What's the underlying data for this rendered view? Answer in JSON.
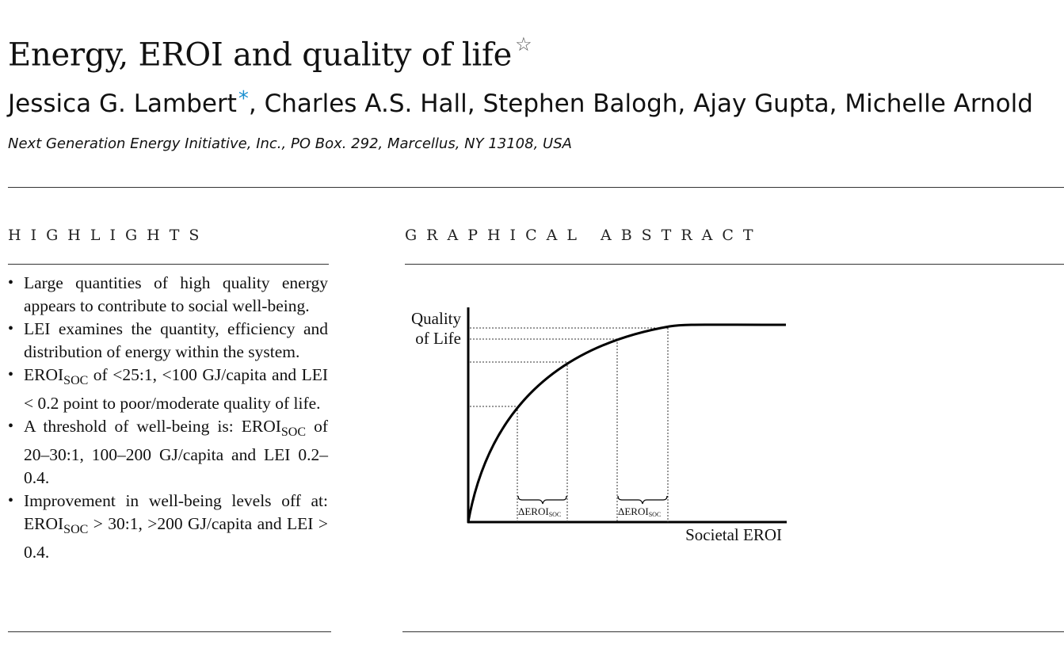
{
  "article": {
    "title": "Energy, EROI and quality of life",
    "title_star": "☆",
    "authors": "Jessica G. Lambert",
    "authors_rest": ", Charles A.S. Hall, Stephen Balogh, Ajay Gupta, Michelle Arnold",
    "corresponding_mark": "*",
    "affiliation": "Next Generation Energy Initiative, Inc., PO Box. 292, Marcellus, NY 13108, USA"
  },
  "highlights": {
    "heading": "HIGHLIGHTS",
    "items": [
      {
        "parts": [
          "Large quantities of high quality energy appears to contribute to social well-being."
        ]
      },
      {
        "parts": [
          "LEI examines the quantity, efficiency and distribution of energy within the system."
        ]
      },
      {
        "parts": [
          "EROI",
          "SOC",
          " of  <25:1,  <100 GJ/capita and LEI < 0.2 point to poor/moderate quality of life."
        ]
      },
      {
        "parts": [
          "A threshold of well-being is: EROI",
          "SOC",
          " of 20–30:1, 100–200 GJ/capita and LEI 0.2–0.4."
        ]
      },
      {
        "parts": [
          "Improvement in well-being levels off at: EROI",
          "SOC",
          " > 30:1,  >200 GJ/capita and LEI > 0.4."
        ]
      }
    ]
  },
  "graphical_abstract": {
    "heading": "GRAPHICAL ABSTRACT",
    "ylabel_line1": "Quality",
    "ylabel_line2": "of Life",
    "xlabel": "Societal EROI",
    "brace_label_main": "ΔEROI",
    "brace_label_sub": "SOC"
  }
}
